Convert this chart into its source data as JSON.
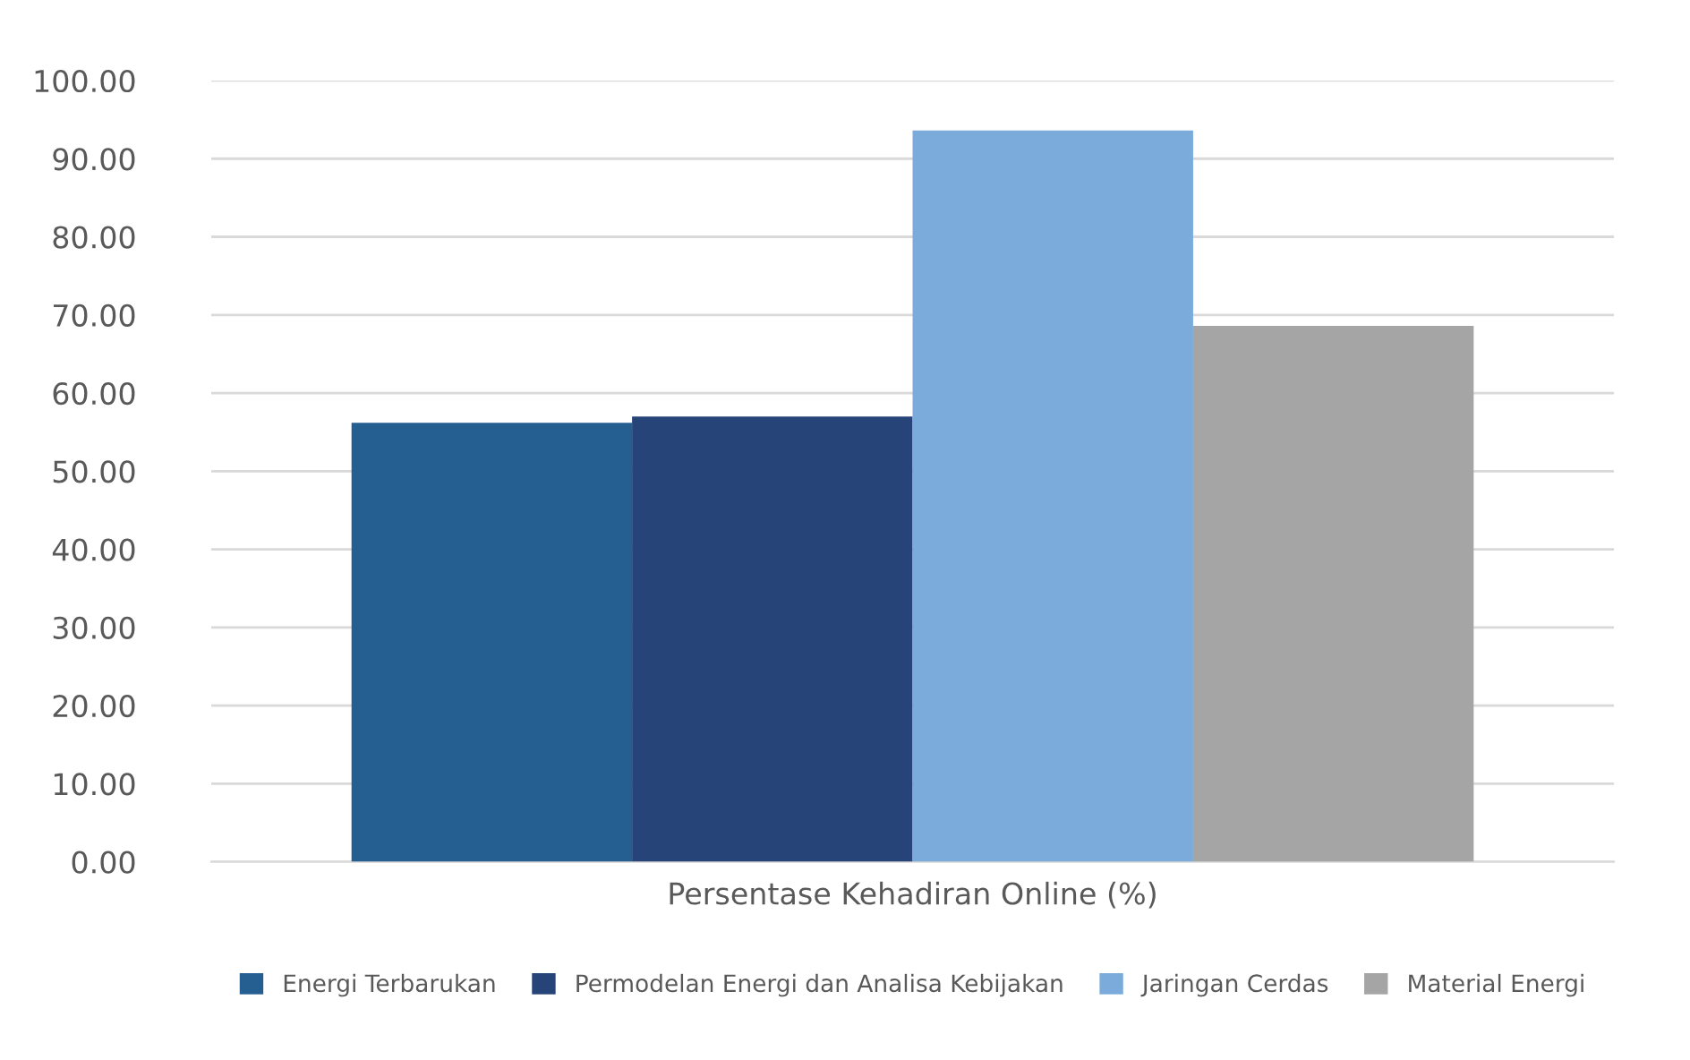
{
  "chart_data": {
    "type": "bar",
    "categories": [
      "Persentase Kehadiran Online (%)"
    ],
    "series": [
      {
        "name": "Energi Terbarukan",
        "color": "#255e91",
        "values": [
          56.2
        ]
      },
      {
        "name": "Permodelan Energi dan Analisa Kebijakan",
        "color": "#264478",
        "values": [
          57.0
        ]
      },
      {
        "name": "Jaringan Cerdas",
        "color": "#7aabdb",
        "values": [
          93.6
        ]
      },
      {
        "name": "Material Energi",
        "color": "#a5a5a5",
        "values": [
          68.6
        ]
      }
    ],
    "ylim": [
      0,
      100
    ],
    "yticks": [
      {
        "value": 0,
        "label": "0.00"
      },
      {
        "value": 10,
        "label": "10.00"
      },
      {
        "value": 20,
        "label": "20.00"
      },
      {
        "value": 30,
        "label": "30.00"
      },
      {
        "value": 40,
        "label": "40.00"
      },
      {
        "value": 50,
        "label": "50.00"
      },
      {
        "value": 60,
        "label": "60.00"
      },
      {
        "value": 70,
        "label": "70.00"
      },
      {
        "value": 80,
        "label": "80.00"
      },
      {
        "value": 90,
        "label": "90.00"
      },
      {
        "value": 100,
        "label": "100.00"
      }
    ],
    "grid": "y",
    "legend": "bottom"
  }
}
